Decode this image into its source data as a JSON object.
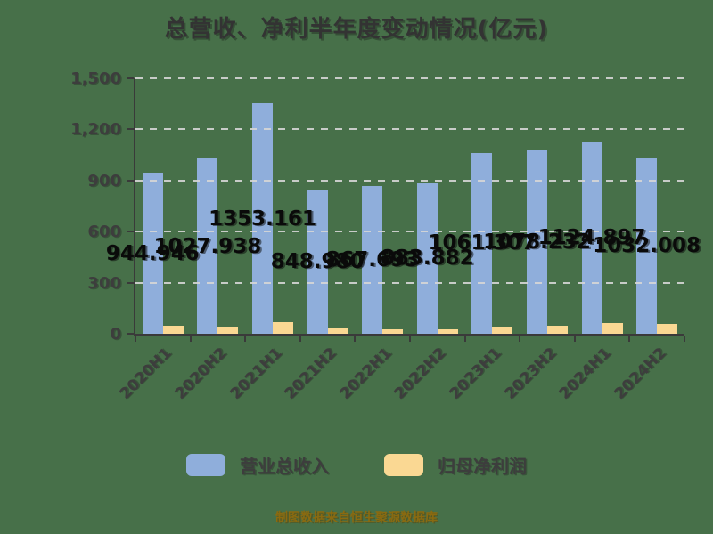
{
  "title": "总营收、净利半年度变动情况(亿元)",
  "footer": "制图数据来自恒生聚源数据库",
  "colors": {
    "background": "#477049",
    "revenue_bar": "#8FAEDB",
    "profit_bar": "#FAD893",
    "axis": "#3A3A3A",
    "grid": "#D6D6D6",
    "title_text": "#333333",
    "data_label": "#0A0A0A",
    "tick_label": "#3D3D3D",
    "footer_text": "#8A6A10"
  },
  "y_axis": {
    "tick_labels": [
      "0",
      "300",
      "600",
      "900",
      "1,200",
      "1,500"
    ],
    "max": 1500
  },
  "legend": [
    {
      "label": "营业总收入",
      "color": "#8FAEDB"
    },
    {
      "label": "归母净利润",
      "color": "#FAD893"
    }
  ],
  "chart_data": {
    "type": "bar",
    "title": "总营收、净利半年度变动情况(亿元)",
    "categories": [
      "2020H1",
      "2020H2",
      "2021H1",
      "2021H2",
      "2022H1",
      "2022H2",
      "2023H1",
      "2023H2",
      "2024H1",
      "2024H2"
    ],
    "series": [
      {
        "name": "营业总收入",
        "values": [
          944.946,
          1027.938,
          1353.161,
          848.98,
          867.693,
          883.882,
          1061.307,
          1078.232,
          1124.897,
          1032.008
        ],
        "labels": [
          "944.946",
          "1027.938",
          "1353.161",
          "848.980",
          "867.693",
          "883.882",
          "1061.307",
          "1078.232",
          "1124.897",
          "1032.008"
        ],
        "color": "#8FAEDB",
        "labels_visible": true,
        "label_position": "inside-center"
      },
      {
        "name": "归母净利润",
        "values": [
          45,
          44,
          68,
          33,
          26,
          27,
          41,
          48,
          64,
          55
        ],
        "values_are_estimated_from_pixels": true,
        "color": "#FAD893",
        "labels_visible": false
      }
    ],
    "xlabel": "",
    "ylabel": "",
    "ylim": [
      0,
      1500
    ],
    "grid": "horizontal dashed light-gray at each 300 step",
    "legend_position": "bottom"
  }
}
